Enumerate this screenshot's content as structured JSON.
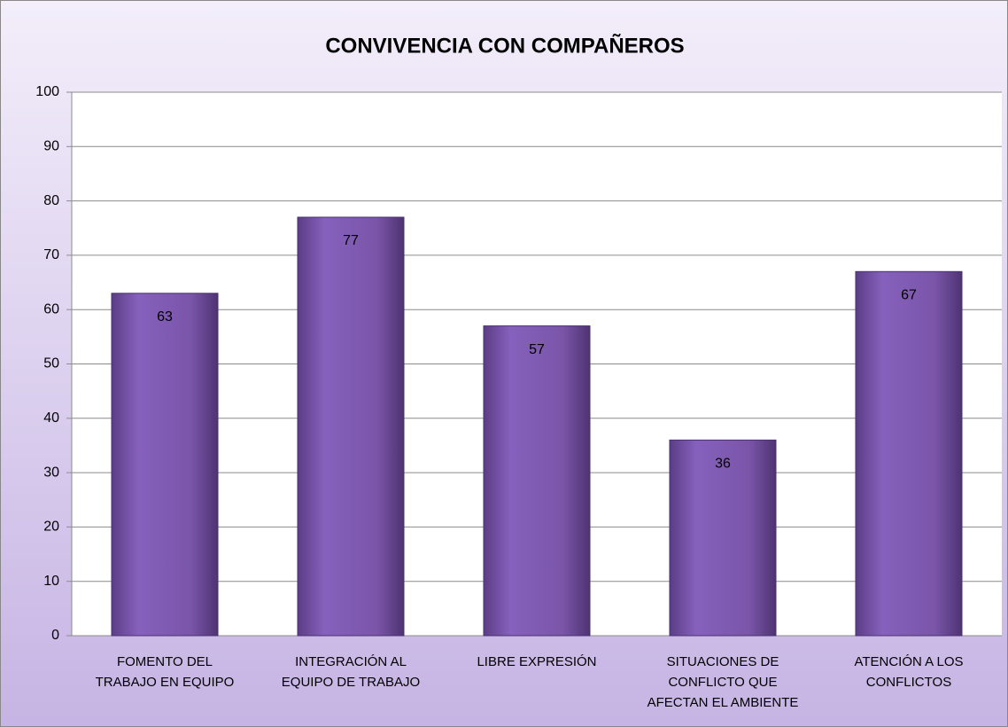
{
  "chart_data": {
    "type": "bar",
    "title": "CONVIVENCIA CON COMPAÑEROS",
    "categories": [
      "FOMENTO DEL\nTRABAJO EN EQUIPO",
      "INTEGRACIÓN AL\nEQUIPO DE TRABAJO",
      "LIBRE EXPRESIÓN",
      "SITUACIONES DE\nCONFLICTO QUE\nAFECTAN EL AMBIENTE",
      "ATENCIÓN A LOS\nCONFLICTOS"
    ],
    "values": [
      63,
      77,
      57,
      36,
      67
    ],
    "color": "#7a55a8",
    "ylim": [
      0,
      100
    ],
    "yticks": [
      0,
      10,
      20,
      30,
      40,
      50,
      60,
      70,
      80,
      90,
      100
    ],
    "grid": true
  }
}
